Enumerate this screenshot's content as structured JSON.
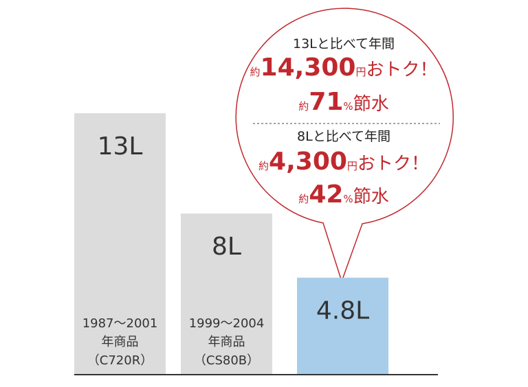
{
  "chart_data": {
    "type": "bar",
    "categories": [
      [
        "1987～2001",
        "年商品",
        "（C720R）"
      ],
      [
        "1999～2004",
        "年商品",
        "（CS80B）"
      ],
      null
    ],
    "values": [
      13,
      8,
      4.8
    ],
    "value_labels": [
      "13L",
      "8L",
      "4.8L"
    ],
    "colors": [
      "#dcdcdd",
      "#dcdcdd",
      "#a7cdea"
    ],
    "callout": [
      {
        "heading": "13Lと比べて年間",
        "lines": [
          [
            "約",
            "14,300",
            "円",
            "おトク！"
          ],
          [
            "約",
            "71",
            "%",
            "節水"
          ]
        ]
      },
      {
        "heading": "8Lと比べて年間",
        "lines": [
          [
            "約",
            "4,300",
            "円",
            "おトク！"
          ],
          [
            "約",
            "42",
            "%",
            "節水"
          ]
        ]
      }
    ]
  }
}
